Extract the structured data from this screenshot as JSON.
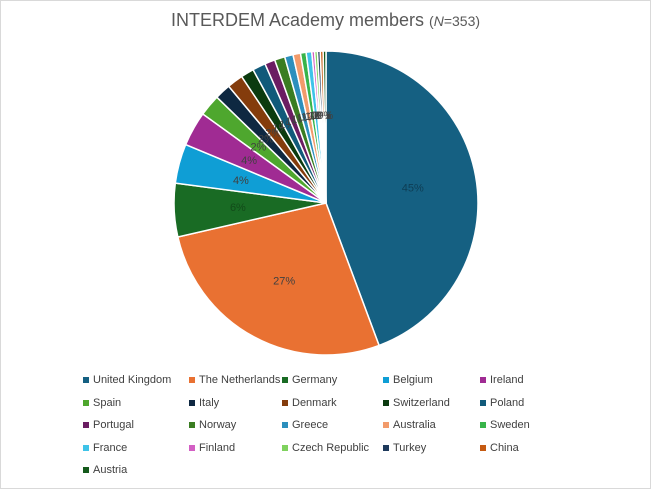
{
  "title": {
    "main": "INTERDEM Academy members",
    "paren_open": "(",
    "n_var": "N",
    "n_rest": "=353)"
  },
  "chart_data": {
    "type": "pie",
    "title": "INTERDEM Academy members (N=353)",
    "legend_position": "bottom",
    "start_angle_deg": 0,
    "direction": "clockwise",
    "slices": [
      {
        "name": "United Kingdom",
        "value": 44.5,
        "label": "45%",
        "color": "#156082",
        "label_color": "#0e3d54"
      },
      {
        "name": "The Netherlands",
        "value": 27.2,
        "label": "27%",
        "color": "#e97132",
        "label_color": "#404040"
      },
      {
        "name": "Germany",
        "value": 5.7,
        "label": "6%",
        "color": "#196b24",
        "label_color": "#124b19"
      },
      {
        "name": "Belgium",
        "value": 4.2,
        "label": "4%",
        "color": "#0f9ed5",
        "label_color": "#404040"
      },
      {
        "name": "Ireland",
        "value": 3.7,
        "label": "4%",
        "color": "#a02b93",
        "label_color": "#404040"
      },
      {
        "name": "Spain",
        "value": 2.3,
        "label": "2%",
        "color": "#4ea72e",
        "label_color": "#404040"
      },
      {
        "name": "Italy",
        "value": 1.7,
        "label": "2%",
        "color": "#0e2841",
        "label_color": "#404040"
      },
      {
        "name": "Denmark",
        "value": 1.7,
        "label": "2%",
        "color": "#843c0c",
        "label_color": "#404040"
      },
      {
        "name": "Switzerland",
        "value": 1.4,
        "label": "1%",
        "color": "#0b3b0f",
        "label_color": "#404040"
      },
      {
        "name": "Poland",
        "value": 1.4,
        "label": "1%",
        "color": "#115a7a",
        "label_color": "#404040"
      },
      {
        "name": "Portugal",
        "value": 1.1,
        "label": "1%",
        "color": "#6b1d62",
        "label_color": "#404040"
      },
      {
        "name": "Norway",
        "value": 1.1,
        "label": "1%",
        "color": "#3a7d22",
        "label_color": "#404040"
      },
      {
        "name": "Greece",
        "value": 0.9,
        "label": "1%",
        "color": "#2c8fbd",
        "label_color": "#404040"
      },
      {
        "name": "Australia",
        "value": 0.8,
        "label": "1%",
        "color": "#f29b6b",
        "label_color": "#404040"
      },
      {
        "name": "Sweden",
        "value": 0.6,
        "label": "1%",
        "color": "#38b44a",
        "label_color": "#404040"
      },
      {
        "name": "France",
        "value": 0.6,
        "label": "1%",
        "color": "#3ec3e8",
        "label_color": "#404040"
      },
      {
        "name": "Finland",
        "value": 0.3,
        "label": "0%",
        "color": "#d35fc4",
        "label_color": "#404040"
      },
      {
        "name": "Czech Republic",
        "value": 0.3,
        "label": "0%",
        "color": "#7fd25e",
        "label_color": "#404040"
      },
      {
        "name": "Turkey",
        "value": 0.3,
        "label": "0%",
        "color": "#1e3a5c",
        "label_color": "#404040"
      },
      {
        "name": "China",
        "value": 0.3,
        "label": "0%",
        "color": "#c55a11",
        "label_color": "#404040"
      },
      {
        "name": "Austria",
        "value": 0.3,
        "label": "0%",
        "color": "#145a1c",
        "label_color": "#404040"
      }
    ]
  }
}
